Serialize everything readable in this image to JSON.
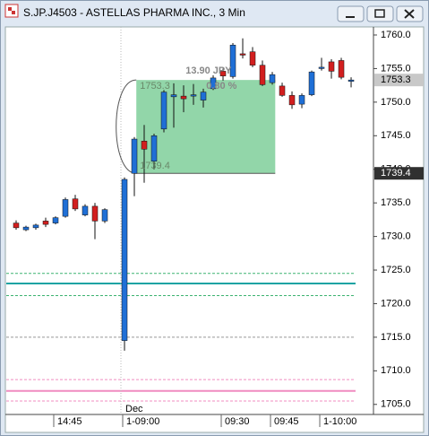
{
  "window": {
    "title": "S.JP.J4503 - ASTELLAS PHARMA INC., 3 Min"
  },
  "chart_data": {
    "type": "candlestick",
    "x": [
      0,
      1,
      2,
      3,
      4,
      5,
      6,
      7,
      8,
      9,
      11,
      12,
      13,
      14,
      15,
      16,
      17,
      18,
      19,
      20,
      21,
      22,
      23,
      24,
      25,
      26,
      27,
      28,
      29,
      30,
      31,
      32,
      33,
      34
    ],
    "open": [
      1732,
      1731,
      1731.3,
      1732.3,
      1732,
      1733,
      1735.6,
      1733.2,
      1734.5,
      1732.3,
      1714.5,
      1739.4,
      1744.2,
      1741.2,
      1746,
      1750.8,
      1750.9,
      1751,
      1750.3,
      1752,
      1754.6,
      1753.8,
      1757.2,
      1757.5,
      1755.5,
      1752.9,
      1752.4,
      1751,
      1749.7,
      1751.1,
      1755,
      1756,
      1756.2,
      1753.3
    ],
    "high": [
      1732.4,
      1731.6,
      1731.9,
      1732.8,
      1733,
      1735.8,
      1736.2,
      1734.8,
      1735,
      1734.2,
      1738.8,
      1744.8,
      1746.6,
      1745.3,
      1751.8,
      1752.8,
      1752.5,
      1752.7,
      1752,
      1754,
      1755,
      1758.8,
      1759.5,
      1758.2,
      1756.2,
      1754.5,
      1752.9,
      1751.6,
      1751.3,
      1754.7,
      1756.6,
      1756.4,
      1756.6,
      1753.7
    ],
    "low": [
      1731,
      1730.8,
      1731,
      1731.4,
      1731.8,
      1732.8,
      1733.8,
      1733,
      1729.6,
      1732,
      1713,
      1736,
      1738,
      1740,
      1745.5,
      1746.2,
      1748.5,
      1749.6,
      1749.2,
      1751.8,
      1753.2,
      1753.5,
      1756.5,
      1755.2,
      1752.4,
      1752.6,
      1750.8,
      1749,
      1749.1,
      1750.9,
      1754.7,
      1753.5,
      1753.4,
      1752.2
    ],
    "close": [
      1731.3,
      1731.4,
      1731.7,
      1731.8,
      1732.8,
      1735.5,
      1734.1,
      1734.5,
      1732.3,
      1734,
      1738.5,
      1744.5,
      1743,
      1745,
      1751.5,
      1751.1,
      1750.5,
      1751.1,
      1751.5,
      1753.6,
      1753.9,
      1758.5,
      1757.1,
      1755.5,
      1752.6,
      1754.1,
      1751,
      1749.6,
      1751,
      1754.5,
      1755.2,
      1754.6,
      1753.7,
      1753.3
    ],
    "up_color": "#1f6fd6",
    "down_color": "#d21f1f",
    "xlim": [
      -1,
      36.27
    ],
    "ylim": [
      1703.5,
      1761.2
    ],
    "yticks": [
      {
        "value": 1760,
        "label": "1760.0"
      },
      {
        "value": 1755,
        "label": "1755.0"
      },
      {
        "value": 1750,
        "label": "1750.0"
      },
      {
        "value": 1745,
        "label": "1745.0"
      },
      {
        "value": 1740,
        "label": "1740.0"
      },
      {
        "value": 1735,
        "label": "1735.0"
      },
      {
        "value": 1730,
        "label": "1730.0"
      },
      {
        "value": 1725,
        "label": "1725.0"
      },
      {
        "value": 1720,
        "label": "1720.0"
      },
      {
        "value": 1715,
        "label": "1715.0"
      },
      {
        "value": 1710,
        "label": "1710.0"
      },
      {
        "value": 1705,
        "label": "1705.0"
      }
    ],
    "xticks": [
      {
        "value": 4,
        "label": "14:45"
      },
      {
        "value": 11,
        "label": "1-09:00"
      },
      {
        "value": 21,
        "label": "09:30"
      },
      {
        "value": 26,
        "label": "09:45"
      },
      {
        "value": 31,
        "label": "1-10:00"
      }
    ],
    "month_ticks": [
      {
        "value": 11,
        "label": "Dec"
      }
    ],
    "levels": [
      {
        "value": 1724.5,
        "color": "#3cb371",
        "style": "dashed"
      },
      {
        "value": 1723,
        "color": "#1aa3a3",
        "style": "solid"
      },
      {
        "value": 1721.2,
        "color": "#3cb371",
        "style": "dashed"
      },
      {
        "value": 1715,
        "color": "#999999",
        "style": "dashed"
      },
      {
        "value": 1708.7,
        "color": "#f08cc0",
        "style": "dashed"
      },
      {
        "value": 1707,
        "color": "#f08cc0",
        "style": "solid"
      },
      {
        "value": 1705.5,
        "color": "#f08cc0",
        "style": "dashed"
      }
    ],
    "price_labels": [
      {
        "value": 1753.3,
        "background": "#c8c8c8"
      },
      {
        "value": 1739.4,
        "background": "#303030"
      }
    ],
    "measure": {
      "from": 1739.4,
      "to": 1753.3,
      "x_from": 12.2,
      "x_to": 26.3,
      "color": "#7fcf9a",
      "change_label": "13.90 JPY",
      "pct_label": "0.80 %"
    }
  }
}
